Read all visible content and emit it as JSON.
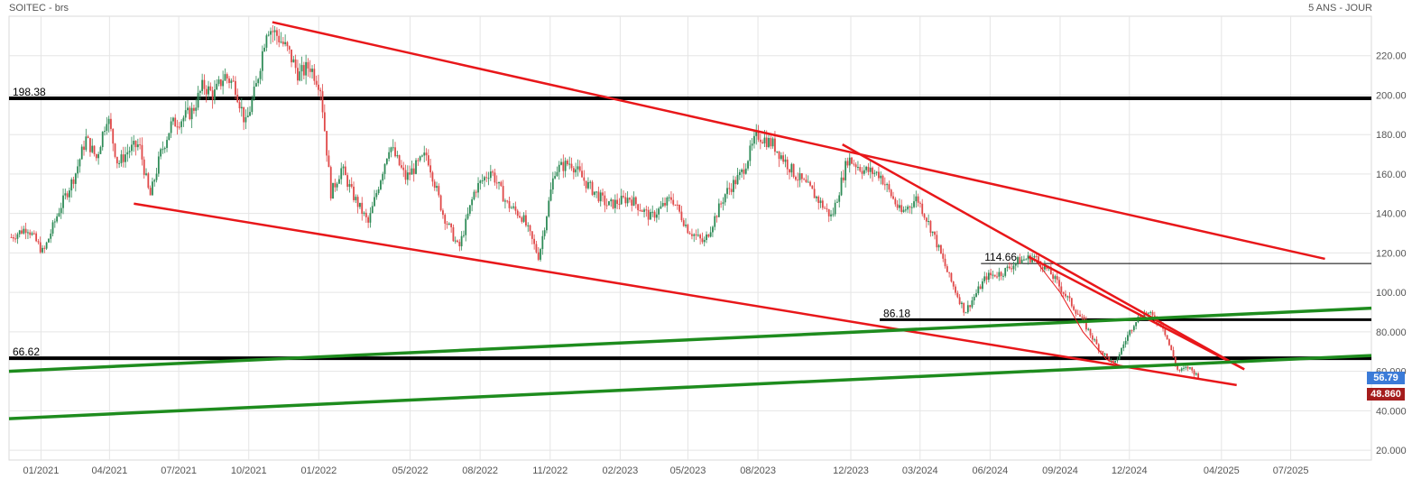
{
  "header": {
    "title": "SOITEC - brs",
    "period": "5 ANS - JOUR"
  },
  "badges": {
    "last_price": "56.79",
    "level": "48.860"
  },
  "colors": {
    "up_candle": "#2e8b57",
    "down_candle": "#e04848",
    "trendline_red": "#e8171a",
    "trendline_green": "#1e8c1e",
    "horizontal_black": "#000000",
    "grid": "#e5e5e5",
    "badge_blue": "#3b7bd8",
    "badge_red": "#a51c1c"
  },
  "chart_data": {
    "type": "candlestick",
    "title": "SOITEC - brs",
    "x_tick_labels": [
      "01/2021",
      "04/2021",
      "07/2021",
      "10/2021",
      "01/2022",
      "05/2022",
      "08/2022",
      "11/2022",
      "02/2023",
      "05/2023",
      "08/2023",
      "12/2023",
      "03/2024",
      "06/2024",
      "09/2024",
      "12/2024",
      "04/2025",
      "07/2025"
    ],
    "y_tick_labels": [
      "20.000",
      "40.000",
      "60.000",
      "80.000",
      "100.00",
      "120.00",
      "140.00",
      "160.00",
      "180.00",
      "200.00",
      "220.00"
    ],
    "ylim": [
      15,
      240
    ],
    "grid": true,
    "price_path_approx": [
      [
        "2020-11-23",
        128
      ],
      [
        "2020-12-14",
        133
      ],
      [
        "2021-01-04",
        120
      ],
      [
        "2021-01-25",
        142
      ],
      [
        "2021-02-15",
        160
      ],
      [
        "2021-03-01",
        178
      ],
      [
        "2021-03-15",
        168
      ],
      [
        "2021-03-29",
        190
      ],
      [
        "2021-04-12",
        165
      ],
      [
        "2021-04-26",
        172
      ],
      [
        "2021-05-10",
        175
      ],
      [
        "2021-05-24",
        148
      ],
      [
        "2021-06-07",
        170
      ],
      [
        "2021-06-21",
        185
      ],
      [
        "2021-07-05",
        188
      ],
      [
        "2021-07-19",
        192
      ],
      [
        "2021-08-02",
        205
      ],
      [
        "2021-08-16",
        200
      ],
      [
        "2021-08-30",
        210
      ],
      [
        "2021-09-13",
        205
      ],
      [
        "2021-09-27",
        185
      ],
      [
        "2021-10-11",
        205
      ],
      [
        "2021-10-25",
        235
      ],
      [
        "2021-11-08",
        230
      ],
      [
        "2021-11-22",
        222
      ],
      [
        "2021-12-06",
        210
      ],
      [
        "2021-12-20",
        215
      ],
      [
        "2022-01-03",
        205
      ],
      [
        "2022-01-17",
        150
      ],
      [
        "2022-01-31",
        163
      ],
      [
        "2022-02-14",
        150
      ],
      [
        "2022-03-07",
        135
      ],
      [
        "2022-04-04",
        175
      ],
      [
        "2022-04-25",
        158
      ],
      [
        "2022-05-23",
        170
      ],
      [
        "2022-06-13",
        140
      ],
      [
        "2022-07-04",
        122
      ],
      [
        "2022-07-25",
        152
      ],
      [
        "2022-08-15",
        162
      ],
      [
        "2022-09-05",
        145
      ],
      [
        "2022-09-26",
        138
      ],
      [
        "2022-10-17",
        118
      ],
      [
        "2022-11-07",
        162
      ],
      [
        "2022-11-28",
        166
      ],
      [
        "2022-12-19",
        155
      ],
      [
        "2023-01-16",
        144
      ],
      [
        "2023-02-13",
        148
      ],
      [
        "2023-03-13",
        138
      ],
      [
        "2023-04-10",
        148
      ],
      [
        "2023-05-01",
        132
      ],
      [
        "2023-05-22",
        125
      ],
      [
        "2023-06-19",
        150
      ],
      [
        "2023-07-10",
        160
      ],
      [
        "2023-07-31",
        180
      ],
      [
        "2023-08-21",
        175
      ],
      [
        "2023-09-18",
        160
      ],
      [
        "2023-10-09",
        152
      ],
      [
        "2023-11-06",
        138
      ],
      [
        "2023-11-27",
        168
      ],
      [
        "2023-12-18",
        162
      ],
      [
        "2024-01-08",
        160
      ],
      [
        "2024-02-05",
        140
      ],
      [
        "2024-02-26",
        148
      ],
      [
        "2024-03-18",
        130
      ],
      [
        "2024-04-08",
        108
      ],
      [
        "2024-04-29",
        90
      ],
      [
        "2024-05-27",
        108
      ],
      [
        "2024-06-17",
        110
      ],
      [
        "2024-07-08",
        116
      ],
      [
        "2024-07-29",
        118
      ],
      [
        "2024-08-19",
        110
      ],
      [
        "2024-09-09",
        98
      ],
      [
        "2024-09-30",
        86
      ],
      [
        "2024-10-21",
        72
      ],
      [
        "2024-11-11",
        63
      ],
      [
        "2024-11-25",
        75
      ],
      [
        "2024-12-09",
        86
      ],
      [
        "2024-12-23",
        90
      ],
      [
        "2025-01-13",
        84
      ],
      [
        "2025-02-03",
        60
      ],
      [
        "2025-02-17",
        62
      ],
      [
        "2025-03-03",
        56.79
      ]
    ],
    "horizontal_levels": [
      {
        "label": "198.38",
        "value": 198.38
      },
      {
        "label": "114.66",
        "value": 114.66
      },
      {
        "label": "86.18",
        "value": 86.18
      },
      {
        "label": "66.62",
        "value": 66.62
      }
    ],
    "trendlines": [
      {
        "color": "red",
        "from": [
          "2021-11-01",
          237
        ],
        "to": [
          "2025-08-15",
          117
        ]
      },
      {
        "color": "red",
        "from": [
          "2023-11-20",
          175
        ],
        "to": [
          "2025-05-01",
          61
        ]
      },
      {
        "color": "red",
        "from": [
          "2024-07-22",
          118
        ],
        "to": [
          "2025-05-01",
          61
        ]
      },
      {
        "color": "red",
        "from": [
          "2021-05-03",
          145
        ],
        "to": [
          "2025-04-21",
          53
        ]
      },
      {
        "color": "green",
        "from": [
          "2020-11-20",
          60
        ],
        "to": [
          "2025-10-15",
          92
        ]
      },
      {
        "color": "green",
        "from": [
          "2020-11-20",
          36
        ],
        "to": [
          "2025-10-15",
          68
        ]
      }
    ]
  }
}
